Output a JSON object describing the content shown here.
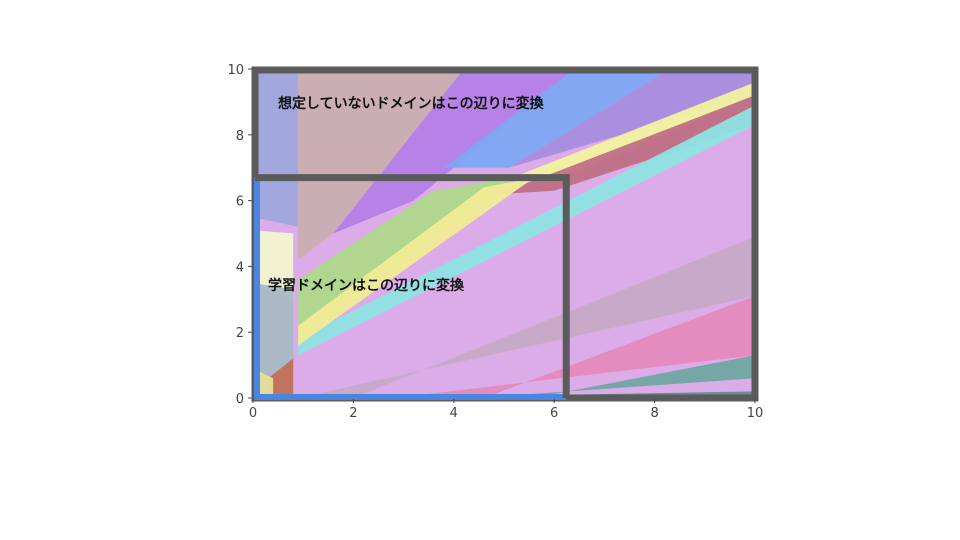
{
  "annotations": {
    "outer_label": "想定していないドメインはこの辺りに変換",
    "inner_label": "学習ドメインはこの辺りに変換"
  },
  "axes": {
    "x_ticks": [
      "0",
      "2",
      "4",
      "6",
      "8",
      "10"
    ],
    "y_ticks": [
      "0",
      "2",
      "4",
      "6",
      "8",
      "10"
    ],
    "xlim": [
      0,
      10
    ],
    "ylim": [
      0,
      10
    ]
  },
  "regions": {
    "outer": {
      "x": [
        0,
        10
      ],
      "y": [
        0,
        10
      ],
      "color": "#5b5b5b"
    },
    "inner": {
      "x": [
        0,
        6.2
      ],
      "y": [
        0,
        6.7
      ],
      "color": "#4a86e0"
    }
  },
  "polygons": [
    {
      "color": "#d9a8e6",
      "points": [
        [
          0,
          0
        ],
        [
          10,
          0
        ],
        [
          10,
          10
        ],
        [
          0,
          10
        ]
      ]
    },
    {
      "color": "#9fa8dc",
      "points": [
        [
          0,
          10
        ],
        [
          0.9,
          10
        ],
        [
          0.9,
          5.2
        ],
        [
          0,
          5.5
        ]
      ]
    },
    {
      "color": "#c9aeb0",
      "points": [
        [
          0.9,
          10
        ],
        [
          4.2,
          10
        ],
        [
          1.6,
          5.0
        ],
        [
          0.9,
          4.2
        ]
      ]
    },
    {
      "color": "#b57fe8",
      "points": [
        [
          4.2,
          10
        ],
        [
          6.4,
          10
        ],
        [
          3.2,
          6.0
        ],
        [
          1.6,
          5.0
        ]
      ]
    },
    {
      "color": "#7ea6f2",
      "points": [
        [
          6.4,
          10
        ],
        [
          8.3,
          10
        ],
        [
          5.1,
          7.0
        ],
        [
          3.8,
          7.0
        ]
      ]
    },
    {
      "color": "#a88de0",
      "points": [
        [
          8.3,
          10
        ],
        [
          10,
          10
        ],
        [
          10,
          9.2
        ],
        [
          5.1,
          7.0
        ]
      ]
    },
    {
      "color": "#f2f2a0",
      "points": [
        [
          10,
          9.6
        ],
        [
          10,
          9.2
        ],
        [
          6.2,
          6.7
        ],
        [
          5.0,
          6.6
        ]
      ]
    },
    {
      "color": "#c06f86",
      "points": [
        [
          10,
          9.2
        ],
        [
          10,
          8.3
        ],
        [
          6.0,
          6.3
        ],
        [
          4.9,
          6.2
        ]
      ]
    },
    {
      "color": "#8ee1e4",
      "points": [
        [
          10,
          8.9
        ],
        [
          10,
          8.3
        ],
        [
          0.9,
          1.3
        ],
        [
          0.9,
          1.8
        ]
      ]
    },
    {
      "color": "#aed88a",
      "points": [
        [
          3.6,
          6.3
        ],
        [
          5.2,
          6.7
        ],
        [
          0.9,
          1.8
        ],
        [
          0.9,
          3.6
        ]
      ]
    },
    {
      "color": "#f2ec96",
      "points": [
        [
          4.6,
          6.4
        ],
        [
          5.6,
          6.7
        ],
        [
          0.9,
          1.6
        ],
        [
          0.9,
          2.2
        ]
      ]
    },
    {
      "color": "#c8a9c8",
      "points": [
        [
          10,
          4.9
        ],
        [
          10,
          3.1
        ],
        [
          0.9,
          0
        ],
        [
          2.0,
          0
        ]
      ]
    },
    {
      "color": "#e589bd",
      "points": [
        [
          10,
          3.1
        ],
        [
          10,
          1.3
        ],
        [
          2.8,
          0
        ],
        [
          4.6,
          0
        ]
      ]
    },
    {
      "color": "#6fa6a2",
      "points": [
        [
          10,
          1.3
        ],
        [
          10,
          0.6
        ],
        [
          4.4,
          0
        ],
        [
          5.6,
          0
        ]
      ]
    },
    {
      "color": "#5f8f8c",
      "points": [
        [
          6.2,
          0
        ],
        [
          10,
          0
        ],
        [
          10,
          0.2
        ],
        [
          6.2,
          0.1
        ]
      ]
    },
    {
      "color": "#f3f6d2",
      "points": [
        [
          0,
          5.1
        ],
        [
          0.8,
          5.0
        ],
        [
          0.8,
          3.0
        ],
        [
          0,
          3.4
        ]
      ]
    },
    {
      "color": "#a9b9c5",
      "points": [
        [
          0,
          3.5
        ],
        [
          0.8,
          3.3
        ],
        [
          0.8,
          0
        ],
        [
          0,
          0
        ]
      ]
    },
    {
      "color": "#c1705a",
      "points": [
        [
          0.3,
          0
        ],
        [
          0.8,
          0
        ],
        [
          0.8,
          1.2
        ],
        [
          0.3,
          0.6
        ]
      ]
    },
    {
      "color": "#e8dd9a",
      "points": [
        [
          0,
          0.9
        ],
        [
          0.4,
          0.6
        ],
        [
          0.4,
          0
        ],
        [
          0,
          0
        ]
      ]
    }
  ]
}
